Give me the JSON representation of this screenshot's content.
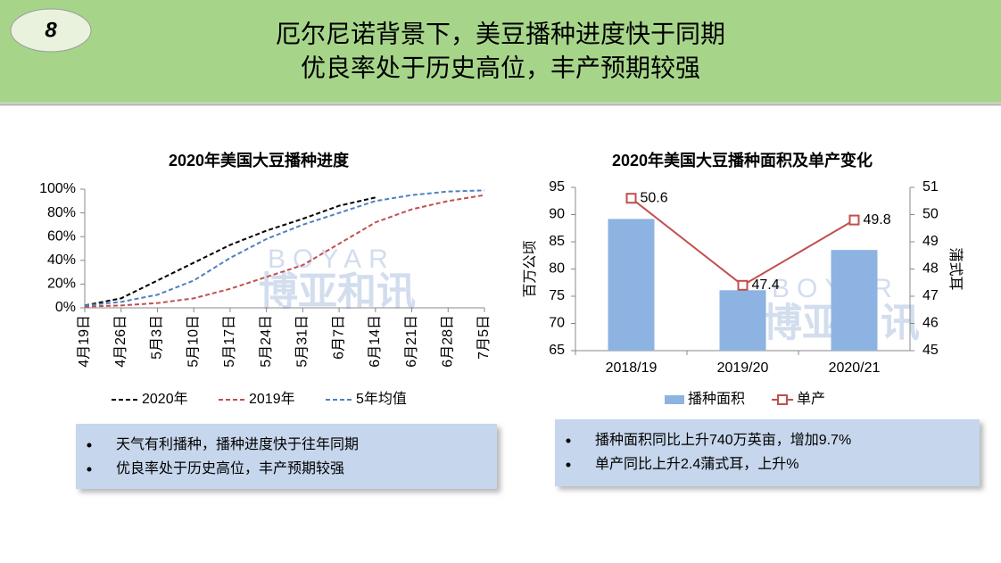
{
  "header": {
    "number": "8",
    "title_lines": [
      "厄尔尼诺背景下，美豆播种进度快于同期",
      "优良率处于历史高位，丰产预期较强"
    ]
  },
  "watermark": {
    "latin": "BOYAR",
    "chinese": "博亚和讯"
  },
  "chart_data": [
    {
      "type": "line",
      "title": "2020年美国大豆播种进度",
      "line_style": "dashed",
      "categories": [
        "4月19日",
        "4月26日",
        "5月3日",
        "5月10日",
        "5月17日",
        "5月24日",
        "5月31日",
        "6月7日",
        "6月14日",
        "6月21日",
        "6月28日",
        "7月5日"
      ],
      "series": [
        {
          "name": "2020年",
          "color": "#000000",
          "values": [
            2,
            8,
            23,
            38,
            53,
            65,
            75,
            86,
            93,
            null,
            null,
            null
          ]
        },
        {
          "name": "2019年",
          "color": "#c0504d",
          "values": [
            1,
            2,
            4,
            8,
            16,
            26,
            36,
            54,
            72,
            83,
            90,
            95
          ]
        },
        {
          "name": "5年均值",
          "color": "#4f81bd",
          "values": [
            2,
            5,
            11,
            23,
            42,
            58,
            70,
            80,
            90,
            95,
            98,
            99
          ]
        }
      ],
      "ylim": [
        0,
        100
      ],
      "yticks": [
        {
          "value": 0,
          "label": "0%"
        },
        {
          "value": 20,
          "label": "20%"
        },
        {
          "value": 40,
          "label": "40%"
        },
        {
          "value": 60,
          "label": "60%"
        },
        {
          "value": 80,
          "label": "80%"
        },
        {
          "value": 100,
          "label": "100%"
        }
      ],
      "legend": "bottom"
    },
    {
      "type": "bar",
      "title": "2020年美国大豆播种面积及单产变化",
      "categories": [
        "2018/19",
        "2019/20",
        "2020/21"
      ],
      "series": [
        {
          "name": "播种面积",
          "color": "#8db3e2",
          "values": [
            89.2,
            76.1,
            83.5
          ]
        },
        {
          "name": "单产",
          "color": "#c0504d",
          "values": [
            50.6,
            47.4,
            49.8
          ],
          "axis": "y2",
          "marker": "square"
        }
      ],
      "ylabel": "百万公顷",
      "y2label": "蒲式耳",
      "ylim": [
        65,
        95
      ],
      "yticks": [
        65,
        70,
        75,
        80,
        85,
        90,
        95
      ],
      "y2lim": [
        45,
        51
      ],
      "y2ticks": [
        45,
        46,
        47,
        48,
        49,
        50,
        51
      ],
      "legend": "bottom"
    }
  ],
  "notes": [
    [
      "天气有利播种，播种进度快于往年同期",
      "优良率处于历史高位，丰产预期较强"
    ],
    [
      "播种面积同比上升740万英亩，增加9.7%",
      "单产同比上升2.4蒲式耳，上升%"
    ]
  ]
}
